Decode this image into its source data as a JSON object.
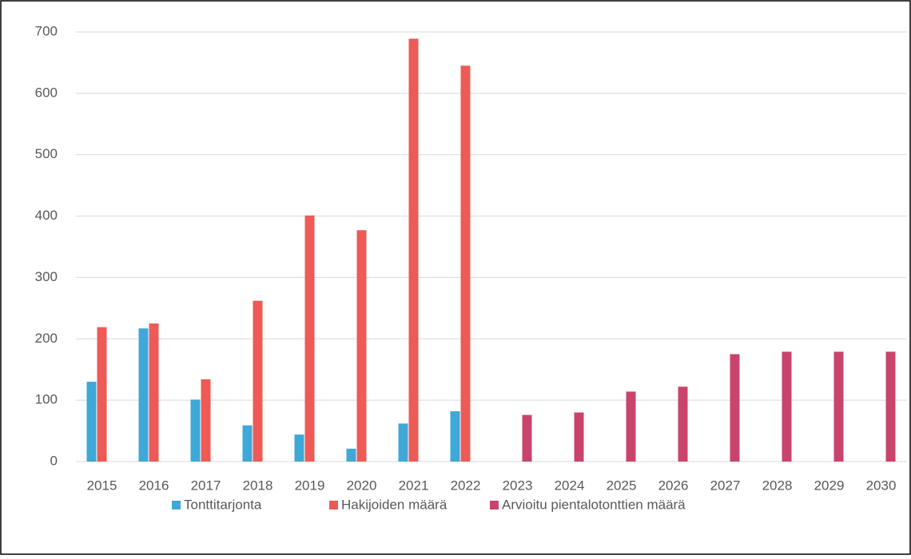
{
  "chart_data": {
    "type": "bar",
    "categories": [
      "2015",
      "2016",
      "2017",
      "2018",
      "2019",
      "2020",
      "2021",
      "2022",
      "2023",
      "2024",
      "2025",
      "2026",
      "2027",
      "2028",
      "2029",
      "2030"
    ],
    "series": [
      {
        "name": "Tonttitarjonta",
        "color": "#3ea8d8",
        "values": [
          130,
          217,
          101,
          59,
          44,
          21,
          62,
          82,
          null,
          null,
          null,
          null,
          null,
          null,
          null,
          null
        ]
      },
      {
        "name": "Hakijoiden määrä",
        "color": "#ee5a55",
        "values": [
          219,
          225,
          134,
          262,
          401,
          377,
          689,
          645,
          null,
          null,
          null,
          null,
          null,
          null,
          null,
          null
        ]
      },
      {
        "name": "Arvioitu pientalotonttien määrä",
        "color": "#c9446c",
        "values": [
          null,
          null,
          null,
          null,
          null,
          null,
          null,
          null,
          76,
          80,
          114,
          122,
          175,
          179,
          179,
          179
        ]
      }
    ],
    "ylim": [
      0,
      700
    ],
    "yticks": [
      0,
      100,
      200,
      300,
      400,
      500,
      600,
      700
    ],
    "grid": true,
    "legend": "bottom"
  }
}
